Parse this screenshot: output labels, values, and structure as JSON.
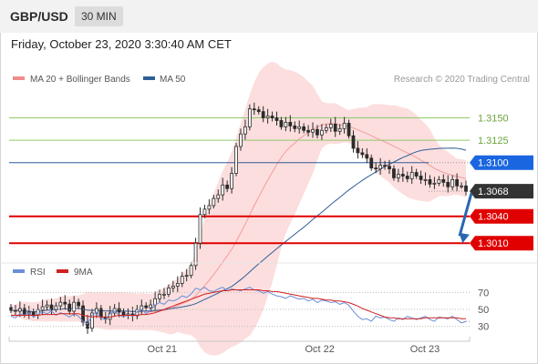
{
  "header": {
    "pair": "GBP/USD",
    "timeframe": "30 MIN",
    "datetime": "Friday, October 23, 2020 3:30:40 AM CET"
  },
  "legend": {
    "bollinger": "MA 20 + Bollinger Bands",
    "ma50": "MA 50",
    "rsi": "RSI",
    "nine_ma": "9MA"
  },
  "credit": "Research © 2020 Trading Central",
  "colors": {
    "candle": "#2b2b2b",
    "bollinger": "#f28b8b",
    "ma50": "#2f5f98",
    "green_level": "#8fca6a",
    "blue_level": "#2f5f98",
    "red_level": "#e00000",
    "arrow": "#2a66b0",
    "rsi": "#6a8fd8",
    "nine_ma": "#d02020",
    "current_tag": "#333333",
    "blue_tag": "#1a66e0",
    "red_tag": "#e00000"
  },
  "chart_data": [
    {
      "type": "candlestick",
      "title": "GBP/USD",
      "y_axis_side": "right",
      "x_tick_labels": [
        "Oct 21",
        "Oct 22",
        "Oct 23"
      ],
      "ylim": [
        1.2995,
        1.318
      ],
      "levels": [
        {
          "value": 1.315,
          "label": "1.3150",
          "style": "green"
        },
        {
          "value": 1.3125,
          "label": "1.3125",
          "style": "green"
        },
        {
          "value": 1.31,
          "label": "1.3100",
          "style": "blue-tag"
        },
        {
          "value": 1.3068,
          "label": "1.3068",
          "style": "current-tag"
        },
        {
          "value": 1.304,
          "label": "1.3040",
          "style": "red-tag"
        },
        {
          "value": 1.301,
          "label": "1.3010",
          "style": "red-tag"
        }
      ],
      "forecast_arrow": {
        "from": 1.3068,
        "to": 1.301
      },
      "close": [
        1.2935,
        1.2934,
        1.2937,
        1.2931,
        1.2933,
        1.293,
        1.2936,
        1.2939,
        1.2941,
        1.2936,
        1.294,
        1.2944,
        1.2942,
        1.2934,
        1.2944,
        1.294,
        1.2922,
        1.2915,
        1.2932,
        1.2937,
        1.2927,
        1.2925,
        1.2932,
        1.2937,
        1.2933,
        1.293,
        1.2931,
        1.2929,
        1.2936,
        1.294,
        1.2938,
        1.2941,
        1.2948,
        1.2953,
        1.2953,
        1.296,
        1.2962,
        1.2965,
        1.2973,
        1.2974,
        1.2985,
        1.301,
        1.3042,
        1.3048,
        1.3052,
        1.306,
        1.3064,
        1.3075,
        1.3071,
        1.3088,
        1.3118,
        1.3132,
        1.314,
        1.316,
        1.3159,
        1.3157,
        1.315,
        1.3152,
        1.315,
        1.3147,
        1.314,
        1.3145,
        1.3141,
        1.3138,
        1.314,
        1.3136,
        1.3134,
        1.3137,
        1.3131,
        1.3136,
        1.3139,
        1.3143,
        1.3135,
        1.3138,
        1.3144,
        1.313,
        1.3116,
        1.3111,
        1.3109,
        1.3105,
        1.3094,
        1.3093,
        1.3097,
        1.3096,
        1.3093,
        1.3083,
        1.3087,
        1.3085,
        1.3082,
        1.3089,
        1.3085,
        1.3081,
        1.3081,
        1.3076,
        1.3077,
        1.3081,
        1.3078,
        1.3073,
        1.3081,
        1.3074,
        1.3074,
        1.3068
      ]
    },
    {
      "type": "line",
      "title": "RSI",
      "y_axis_side": "right",
      "y_tick_labels": [
        "70",
        "50",
        "30"
      ],
      "ylim": [
        20,
        80
      ],
      "series": [
        {
          "name": "RSI",
          "values": [
            42,
            40,
            45,
            43,
            46,
            41,
            44,
            47,
            45,
            48,
            43,
            46,
            44,
            41,
            45,
            42,
            36,
            33,
            43,
            47,
            40,
            38,
            45,
            48,
            43,
            41,
            44,
            42,
            47,
            50,
            45,
            49,
            55,
            58,
            56,
            61,
            60,
            62,
            66,
            64,
            68,
            75,
            73,
            76,
            72,
            71,
            74,
            76,
            72,
            74,
            73,
            72,
            74,
            76,
            73,
            72,
            69,
            71,
            68,
            66,
            65,
            63,
            66,
            64,
            62,
            63,
            60,
            62,
            58,
            61,
            60,
            58,
            59,
            56,
            58,
            55,
            48,
            42,
            38,
            39,
            36,
            42,
            40,
            41,
            38,
            36,
            40,
            38,
            42,
            40,
            38,
            40,
            42,
            38,
            36,
            41,
            40,
            39,
            42,
            38,
            34,
            36
          ]
        },
        {
          "name": "9MA",
          "values": [
            43,
            43,
            43,
            43,
            43,
            43,
            43,
            44,
            44,
            44,
            44,
            45,
            45,
            45,
            45,
            45,
            43,
            42,
            41,
            42,
            41,
            41,
            41,
            42,
            43,
            43,
            43,
            43,
            43,
            44,
            44,
            45,
            46,
            48,
            50,
            52,
            54,
            56,
            58,
            60,
            62,
            64,
            66,
            68,
            69,
            70,
            71,
            72,
            72,
            73,
            73,
            73,
            73,
            73,
            73,
            73,
            72,
            72,
            71,
            71,
            70,
            69,
            68,
            67,
            66,
            65,
            64,
            63,
            63,
            62,
            61,
            61,
            60,
            60,
            59,
            58,
            56,
            54,
            51,
            49,
            47,
            45,
            43,
            41,
            40,
            40,
            39,
            39,
            39,
            39,
            39,
            39,
            40,
            40,
            40,
            40,
            40,
            40,
            40,
            40,
            39,
            39
          ]
        }
      ]
    }
  ]
}
